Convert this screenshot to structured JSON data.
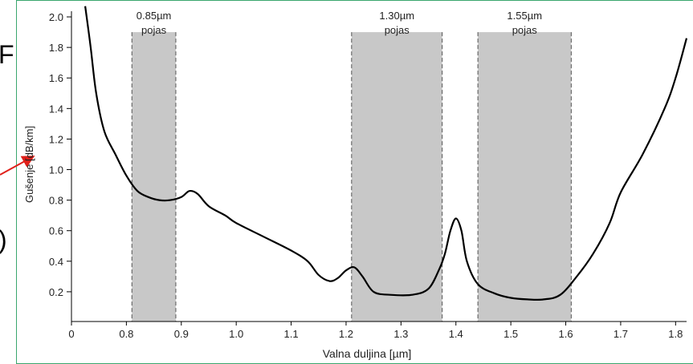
{
  "slide_fragments": {
    "top": "F",
    "bottom": ")"
  },
  "colors": {
    "band_fill": "#c8c8c8",
    "curve": "#000000",
    "frame": "#3aa66e",
    "arrow": "#e0201a"
  },
  "chart_data": {
    "type": "line",
    "title": "",
    "xlabel": "Valna duljina [µm]",
    "ylabel": "Gušenje [dB/km]",
    "xlim": [
      0.7,
      1.82
    ],
    "ylim": [
      0.0,
      2.1
    ],
    "x_ticks": [
      {
        "value": 0.7,
        "label": "0"
      },
      {
        "value": 0.8,
        "label": "0.8"
      },
      {
        "value": 0.9,
        "label": "0.9"
      },
      {
        "value": 1.0,
        "label": "1.0"
      },
      {
        "value": 1.1,
        "label": "1.1"
      },
      {
        "value": 1.2,
        "label": "1.2"
      },
      {
        "value": 1.3,
        "label": "1.3"
      },
      {
        "value": 1.4,
        "label": "1.4"
      },
      {
        "value": 1.5,
        "label": "1.5"
      },
      {
        "value": 1.6,
        "label": "1.6"
      },
      {
        "value": 1.7,
        "label": "1.7"
      },
      {
        "value": 1.8,
        "label": "1.8"
      }
    ],
    "y_ticks": [
      {
        "value": 0.2,
        "label": "0.2"
      },
      {
        "value": 0.4,
        "label": "0.4"
      },
      {
        "value": 0.6,
        "label": "0.6"
      },
      {
        "value": 0.8,
        "label": "0.8"
      },
      {
        "value": 1.0,
        "label": "1.0"
      },
      {
        "value": 1.2,
        "label": "1.2"
      },
      {
        "value": 1.4,
        "label": "1.4"
      },
      {
        "value": 1.6,
        "label": "1.6"
      },
      {
        "value": 1.8,
        "label": "1.8"
      },
      {
        "value": 2.0,
        "label": "2.0"
      }
    ],
    "bands": [
      {
        "name": "0.85µm",
        "label2": "pojas",
        "x_start": 0.81,
        "x_end": 0.89,
        "top": 1.9
      },
      {
        "name": "1.30µm",
        "label2": "pojas",
        "x_start": 1.21,
        "x_end": 1.375,
        "top": 1.9
      },
      {
        "name": "1.55µm",
        "label2": "pojas",
        "x_start": 1.44,
        "x_end": 1.61,
        "top": 1.9
      }
    ],
    "series": [
      {
        "x": [
          0.725,
          0.735,
          0.745,
          0.76,
          0.78,
          0.8,
          0.82,
          0.84,
          0.86,
          0.88,
          0.9,
          0.915,
          0.93,
          0.95,
          0.98,
          1.0,
          1.05,
          1.1,
          1.13,
          1.15,
          1.17,
          1.185,
          1.2,
          1.215,
          1.23,
          1.25,
          1.28,
          1.32,
          1.35,
          1.37,
          1.38,
          1.39,
          1.4,
          1.41,
          1.42,
          1.44,
          1.47,
          1.5,
          1.53,
          1.56,
          1.59,
          1.62,
          1.65,
          1.68,
          1.7,
          1.74,
          1.78,
          1.8,
          1.82
        ],
        "y": [
          2.07,
          1.8,
          1.5,
          1.25,
          1.1,
          0.96,
          0.86,
          0.82,
          0.8,
          0.8,
          0.82,
          0.86,
          0.84,
          0.76,
          0.7,
          0.65,
          0.56,
          0.47,
          0.4,
          0.31,
          0.27,
          0.29,
          0.34,
          0.36,
          0.3,
          0.2,
          0.18,
          0.18,
          0.22,
          0.35,
          0.45,
          0.6,
          0.68,
          0.6,
          0.4,
          0.25,
          0.19,
          0.16,
          0.15,
          0.15,
          0.18,
          0.3,
          0.45,
          0.65,
          0.85,
          1.1,
          1.4,
          1.6,
          1.86
        ]
      }
    ]
  }
}
